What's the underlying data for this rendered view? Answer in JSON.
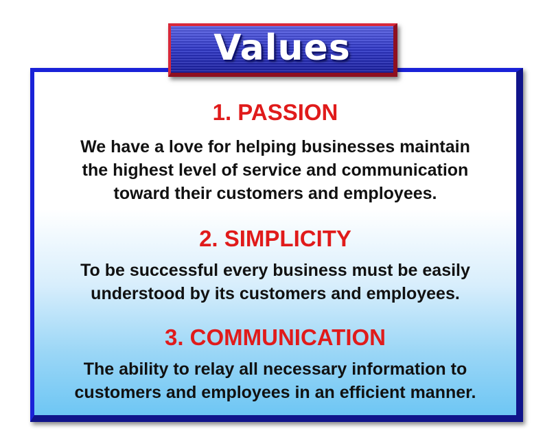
{
  "title": "Values",
  "values": [
    {
      "heading": "1. PASSION",
      "lines": [
        "We have a love for helping businesses maintain",
        "the highest level of service and communication",
        "toward their customers and employees."
      ]
    },
    {
      "heading": "2. SIMPLICITY",
      "lines": [
        "To be successful every business must be easily",
        "understood by its customers and employees."
      ]
    },
    {
      "heading": "3. COMMUNICATION",
      "lines": [
        "The ability to relay all necessary information to",
        "customers and employees in an efficient manner."
      ]
    }
  ],
  "colors": {
    "frame": "#1a22d8",
    "badge_border": "#d8283a",
    "heading": "#e01b1b",
    "text": "#111111",
    "gradient_bottom": "#6ec6f4"
  }
}
